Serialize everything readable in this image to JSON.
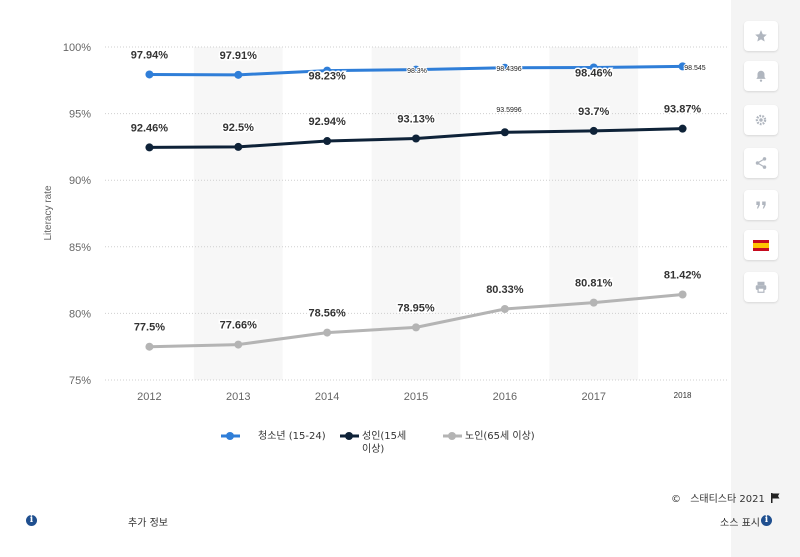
{
  "chart_data": {
    "type": "line",
    "categories": [
      "2012",
      "2013",
      "2014",
      "2015",
      "2016",
      "2017",
      "2018"
    ],
    "ylabel": "Literacy rate",
    "ylim": [
      75,
      100
    ],
    "yticks": [
      "75%",
      "80%",
      "85%",
      "90%",
      "95%",
      "100%"
    ],
    "grid": true,
    "legend_position": "bottom",
    "series": [
      {
        "name": "청소년 (15-24)",
        "color": "#2f7ed8",
        "values": [
          97.94,
          97.91,
          98.23,
          98.3,
          98.4396,
          98.46,
          98.545
        ],
        "labels": [
          "97.94%",
          "97.91%",
          "98.23%",
          "98.3%",
          "98.4396",
          "98.46%",
          "98.545"
        ]
      },
      {
        "name": "성인(15세 이상)",
        "color": "#0e2238",
        "values": [
          92.46,
          92.5,
          92.94,
          93.13,
          93.5996,
          93.7,
          93.87
        ],
        "labels": [
          "92.46%",
          "92.5%",
          "92.94%",
          "93.13%",
          "93.5996",
          "93.7%",
          "93.87%"
        ]
      },
      {
        "name": "노인(65세 이상)",
        "color": "#b4b4b4",
        "values": [
          77.5,
          77.66,
          78.56,
          78.95,
          80.33,
          80.81,
          81.42
        ],
        "labels": [
          "77.5%",
          "77.66%",
          "78.56%",
          "78.95%",
          "80.33%",
          "80.81%",
          "81.42%"
        ]
      }
    ]
  },
  "legend": {
    "youth": "청소년 (15-24)",
    "adult_line1": "성인(15세",
    "adult_line2": "이상)",
    "elderly": "노인(65세 이상)"
  },
  "footer": {
    "copyright_symbol": "©",
    "copyright": "스태티스타 2021",
    "additional_info": "추가 정보",
    "show_source": "소스 표시"
  },
  "sidebar_icons": [
    "star-icon",
    "bell-icon",
    "gear-icon",
    "share-icon",
    "quote-icon",
    "spain-flag-icon",
    "print-icon"
  ]
}
